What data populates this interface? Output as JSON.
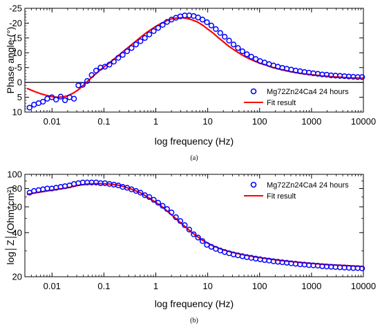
{
  "chart_data": [
    {
      "type": "scatter",
      "panel_id": "a",
      "caption": "(a)",
      "xlabel": "log frequency (Hz)",
      "ylabel": "Phase angle (°)",
      "x_scale": "log",
      "xlim": [
        0.003,
        10000
      ],
      "ylim": [
        10,
        -25
      ],
      "y_inverted": true,
      "x_tick_labels": [
        "0.01",
        "0.1",
        "1",
        "10",
        "100",
        "1000",
        "10000"
      ],
      "x_tick_values": [
        0.01,
        0.1,
        1,
        10,
        100,
        1000,
        10000
      ],
      "y_tick_labels": [
        "-25",
        "-20",
        "-15",
        "-10",
        "-5",
        "0",
        "5",
        "10"
      ],
      "y_tick_values": [
        -25,
        -20,
        -15,
        -10,
        -5,
        0,
        5,
        10
      ],
      "zero_line": true,
      "legend_position": "bottom-right",
      "series": [
        {
          "name": "Mg72Zn24Ca4 24 hours",
          "style": "open-circle",
          "color": "#0000ff",
          "x": [
            0.0037,
            0.0045,
            0.0055,
            0.0067,
            0.0081,
            0.0099,
            0.012,
            0.0147,
            0.0178,
            0.0217,
            0.0265,
            0.0322,
            0.0392,
            0.0477,
            0.0581,
            0.0707,
            0.0861,
            0.1048,
            0.1276,
            0.1553,
            0.1891,
            0.2302,
            0.2802,
            0.3411,
            0.4153,
            0.5056,
            0.6155,
            0.7493,
            0.9122,
            1.1105,
            1.3519,
            1.6458,
            2.0036,
            2.4391,
            2.9693,
            3.6148,
            4.4006,
            5.3572,
            6.5217,
            7.9394,
            9.6653,
            11.766,
            14.324,
            17.438,
            21.229,
            25.844,
            31.461,
            38.3,
            46.626,
            56.761,
            69.1,
            84.12,
            102.41,
            124.67,
            151.77,
            184.76,
            224.92,
            273.81,
            333.33,
            405.79,
            494.0,
            601.39,
            732.12,
            891.26,
            1085.0,
            1320.9,
            1608.0,
            1957.6,
            2383.1,
            2901.1,
            3531.8,
            4299.5,
            5234.1,
            6371.9,
            7757.0,
            9443.2
          ],
          "y": [
            8.5,
            7.5,
            7.0,
            6.5,
            5.5,
            5.0,
            5.8,
            4.8,
            6.0,
            5.0,
            5.5,
            1.0,
            0.8,
            -0.5,
            -2.5,
            -4.0,
            -5.0,
            -5.3,
            -6.0,
            -7.0,
            -8.3,
            -9.3,
            -10.5,
            -11.6,
            -12.8,
            -13.9,
            -15.0,
            -16.2,
            -17.3,
            -18.4,
            -19.4,
            -20.4,
            -21.2,
            -21.8,
            -22.3,
            -22.6,
            -22.6,
            -22.4,
            -21.9,
            -21.2,
            -20.3,
            -19.2,
            -18.0,
            -16.7,
            -15.4,
            -14.1,
            -12.8,
            -11.6,
            -10.5,
            -9.5,
            -8.7,
            -7.9,
            -7.2,
            -6.7,
            -6.2,
            -5.7,
            -5.3,
            -4.9,
            -4.6,
            -4.3,
            -4.0,
            -3.8,
            -3.5,
            -3.3,
            -3.1,
            -2.9,
            -2.7,
            -2.6,
            -2.4,
            -2.3,
            -2.2,
            -2.1,
            -2.0,
            -1.9,
            -1.8,
            -1.8
          ]
        },
        {
          "name": "Fit result",
          "style": "line",
          "color": "#ff0000",
          "x": [
            0.0033,
            0.0045,
            0.006,
            0.008,
            0.01,
            0.013,
            0.016,
            0.02,
            0.025,
            0.032,
            0.04,
            0.05,
            0.063,
            0.08,
            0.1,
            0.13,
            0.16,
            0.2,
            0.25,
            0.32,
            0.4,
            0.5,
            0.63,
            0.8,
            1.0,
            1.3,
            1.6,
            2.0,
            2.5,
            3.2,
            4.0,
            5.0,
            6.3,
            8.0,
            10,
            13,
            16,
            20,
            25,
            32,
            40,
            50,
            63,
            80,
            100,
            130,
            160,
            200,
            250,
            320,
            400,
            500,
            630,
            800,
            1000,
            1300,
            1600,
            2000,
            2500,
            3200,
            4000,
            5000,
            6300,
            8000,
            10000
          ],
          "y": [
            2.0,
            3.0,
            3.8,
            4.4,
            4.8,
            5.0,
            4.9,
            4.5,
            3.7,
            2.5,
            1.0,
            -0.6,
            -2.2,
            -3.8,
            -5.2,
            -6.7,
            -8.0,
            -9.4,
            -10.8,
            -12.3,
            -13.7,
            -15.1,
            -16.5,
            -17.8,
            -18.9,
            -20.0,
            -20.8,
            -21.4,
            -21.7,
            -21.8,
            -21.6,
            -21.1,
            -20.4,
            -19.3,
            -18.0,
            -16.5,
            -15.1,
            -13.7,
            -12.3,
            -11.0,
            -9.9,
            -8.9,
            -8.0,
            -7.2,
            -6.5,
            -5.9,
            -5.3,
            -4.8,
            -4.4,
            -4.0,
            -3.6,
            -3.3,
            -3.0,
            -2.8,
            -2.6,
            -2.4,
            -2.2,
            -2.1,
            -1.9,
            -1.8,
            -1.7,
            -1.6,
            -1.5,
            -1.5,
            -1.4
          ]
        }
      ]
    },
    {
      "type": "scatter",
      "panel_id": "b",
      "caption": "(b)",
      "xlabel": "log frequency (Hz)",
      "ylabel": "log│Z│(Ohm*cm²)",
      "x_scale": "log",
      "y_scale": "log",
      "xlim": [
        0.003,
        10000
      ],
      "ylim": [
        20,
        100
      ],
      "x_tick_labels": [
        "0.01",
        "0.1",
        "1",
        "10",
        "100",
        "1000",
        "10000"
      ],
      "x_tick_values": [
        0.01,
        0.1,
        1,
        10,
        100,
        1000,
        10000
      ],
      "y_tick_labels": [
        "20",
        "40",
        "60",
        "80",
        "100"
      ],
      "y_tick_values": [
        20,
        40,
        60,
        80,
        100
      ],
      "legend_position": "top-right",
      "series": [
        {
          "name": "Mg72Zn24Ca4 24 hours",
          "style": "open-circle",
          "color": "#0000ff",
          "x": [
            0.0037,
            0.0045,
            0.0055,
            0.0067,
            0.0081,
            0.0099,
            0.012,
            0.0147,
            0.0178,
            0.0217,
            0.0265,
            0.0322,
            0.0392,
            0.0477,
            0.0581,
            0.0707,
            0.0861,
            0.1048,
            0.1276,
            0.1553,
            0.1891,
            0.2302,
            0.2802,
            0.3411,
            0.4153,
            0.5056,
            0.6155,
            0.7493,
            0.9122,
            1.1105,
            1.3519,
            1.6458,
            2.0036,
            2.4391,
            2.9693,
            3.6148,
            4.4006,
            5.3572,
            6.5217,
            7.9394,
            9.6653,
            11.766,
            14.324,
            17.438,
            21.229,
            25.844,
            31.461,
            38.3,
            46.626,
            56.761,
            69.1,
            84.12,
            102.41,
            124.67,
            151.77,
            184.76,
            224.92,
            273.81,
            333.33,
            405.79,
            494.0,
            601.39,
            732.12,
            891.26,
            1085.0,
            1320.9,
            1608.0,
            1957.6,
            2383.1,
            2901.1,
            3531.8,
            4299.5,
            5234.1,
            6371.9,
            7757.0,
            9443.2
          ],
          "y": [
            75,
            77,
            78,
            79,
            80,
            80,
            81,
            82,
            83,
            84,
            86,
            87,
            88,
            88,
            88,
            88,
            87,
            87,
            86,
            85,
            84,
            82,
            81,
            79,
            77,
            75,
            72,
            70,
            67,
            64,
            61,
            58,
            55,
            51,
            48,
            45,
            42,
            39,
            37,
            35,
            33,
            32,
            31,
            30.2,
            29.5,
            28.9,
            28.4,
            28.0,
            27.6,
            27.2,
            26.9,
            26.6,
            26.3,
            26.0,
            25.8,
            25.5,
            25.3,
            25.1,
            24.9,
            24.7,
            24.5,
            24.3,
            24.2,
            24.0,
            23.9,
            23.8,
            23.6,
            23.5,
            23.4,
            23.3,
            23.2,
            23.1,
            23.0,
            22.9,
            22.9,
            22.8
          ]
        },
        {
          "name": "Fit result",
          "style": "line",
          "color": "#ff0000",
          "x": [
            0.0033,
            0.005,
            0.008,
            0.0126,
            0.02,
            0.0316,
            0.05,
            0.079,
            0.126,
            0.2,
            0.316,
            0.5,
            0.79,
            1.26,
            2.0,
            3.16,
            5.0,
            7.9,
            12.6,
            20,
            31.6,
            50,
            79,
            126,
            200,
            316,
            500,
            790,
            1260,
            2000,
            3160,
            5000,
            7900,
            10000
          ],
          "y": [
            73,
            75,
            77,
            79,
            81,
            84,
            86,
            86.5,
            86,
            84,
            80,
            75,
            68,
            61,
            53,
            46,
            40,
            35.5,
            32.5,
            30.5,
            29.2,
            28.2,
            27.4,
            26.7,
            26.1,
            25.6,
            25.2,
            24.8,
            24.5,
            24.2,
            24.0,
            23.8,
            23.6,
            23.5
          ]
        }
      ]
    }
  ]
}
